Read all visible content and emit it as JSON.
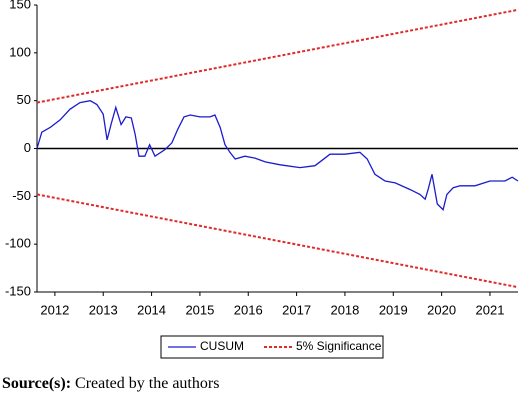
{
  "chart_data": {
    "type": "line",
    "xlim": [
      2012.13,
      2022.08
    ],
    "ylim": [
      -150,
      150
    ],
    "yticks": [
      -150,
      -100,
      -50,
      0,
      50,
      100,
      150
    ],
    "xticks": [
      {
        "value": 2012.5,
        "label": "2012"
      },
      {
        "value": 2013.5,
        "label": "2013"
      },
      {
        "value": 2014.5,
        "label": "2014"
      },
      {
        "value": 2015.5,
        "label": "2015"
      },
      {
        "value": 2016.5,
        "label": "2016"
      },
      {
        "value": 2017.5,
        "label": "2017"
      },
      {
        "value": 2018.5,
        "label": "2018"
      },
      {
        "value": 2019.5,
        "label": "2019"
      },
      {
        "value": 2020.5,
        "label": "2020"
      },
      {
        "value": 2021.5,
        "label": "2021"
      }
    ],
    "series": [
      {
        "name": "CUSUM",
        "color": "#1c1ccf",
        "dash": false,
        "x": [
          2012.13,
          2012.23,
          2012.4,
          2012.61,
          2012.81,
          2013.02,
          2013.23,
          2013.37,
          2013.5,
          2013.58,
          2013.66,
          2013.76,
          2013.87,
          2013.97,
          2014.08,
          2014.16,
          2014.24,
          2014.36,
          2014.46,
          2014.57,
          2014.78,
          2014.92,
          2015.04,
          2015.17,
          2015.3,
          2015.5,
          2015.71,
          2015.81,
          2015.92,
          2016.02,
          2016.12,
          2016.23,
          2016.43,
          2016.64,
          2016.85,
          2017.16,
          2017.57,
          2017.88,
          2018.19,
          2018.5,
          2018.81,
          2018.96,
          2019.12,
          2019.33,
          2019.54,
          2019.85,
          2020.05,
          2020.16,
          2020.22,
          2020.3,
          2020.41,
          2020.53,
          2020.61,
          2020.74,
          2020.88,
          2021.19,
          2021.5,
          2021.81,
          2021.96,
          2022.08
        ],
        "values": [
          0,
          17,
          22,
          30,
          41,
          48,
          50,
          46,
          36,
          9,
          25,
          43,
          25,
          33,
          32,
          15,
          -8,
          -8,
          4,
          -8,
          -1,
          6,
          20,
          33,
          35,
          33,
          33,
          35,
          22,
          4,
          -4,
          -11,
          -8,
          -10,
          -14,
          -17,
          -20,
          -18,
          -6,
          -6,
          -4,
          -11,
          -27,
          -34,
          -36,
          -43,
          -48,
          -53,
          -43,
          -27,
          -58,
          -64,
          -48,
          -41,
          -39,
          -39,
          -34,
          -34,
          -30,
          -34
        ]
      },
      {
        "name": "5% Significance",
        "color": "#e02a2a",
        "dash": true,
        "x": [
          2012.13,
          2022.08
        ],
        "values": [
          48,
          145
        ]
      },
      {
        "name": null,
        "color": "#e02a2a",
        "dash": true,
        "x": [
          2012.13,
          2022.08
        ],
        "values": [
          -48,
          -145
        ]
      }
    ]
  },
  "source": {
    "label": "Source(s):",
    "text": "Created by the authors"
  }
}
